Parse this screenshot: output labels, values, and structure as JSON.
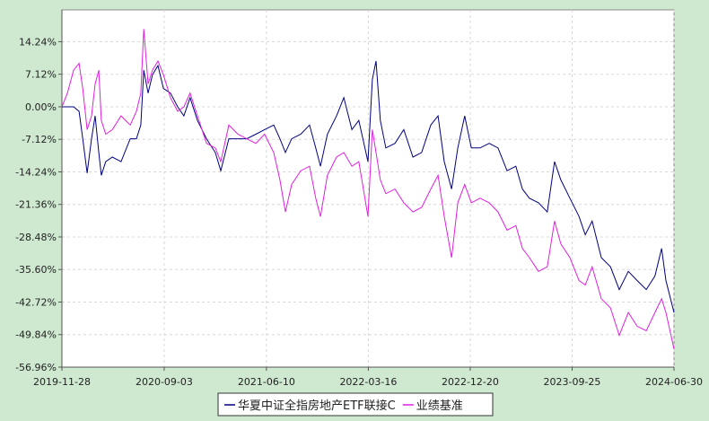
{
  "chart_data": {
    "type": "line",
    "x": [
      "2019-11-28",
      "2019-12-13",
      "2019-12-30",
      "2020-01-14",
      "2020-01-24",
      "2020-02-05",
      "2020-02-17",
      "2020-02-27",
      "2020-03-08",
      "2020-03-15",
      "2020-03-27",
      "2020-04-14",
      "2020-05-08",
      "2020-06-02",
      "2020-06-19",
      "2020-07-01",
      "2020-07-09",
      "2020-07-21",
      "2020-08-02",
      "2020-08-17",
      "2020-09-01",
      "2020-09-20",
      "2020-10-10",
      "2020-10-27",
      "2020-11-13",
      "2020-12-03",
      "2020-12-28",
      "2021-01-21",
      "2021-02-05",
      "2021-02-27",
      "2021-03-24",
      "2021-04-17",
      "2021-05-12",
      "2021-06-05",
      "2021-06-30",
      "2021-07-17",
      "2021-08-01",
      "2021-08-18",
      "2021-09-12",
      "2021-10-06",
      "2021-10-23",
      "2021-11-05",
      "2021-11-24",
      "2021-12-19",
      "2022-01-08",
      "2022-01-30",
      "2022-02-18",
      "2022-03-15",
      "2022-03-27",
      "2022-04-06",
      "2022-04-18",
      "2022-05-03",
      "2022-05-28",
      "2022-06-21",
      "2022-07-16",
      "2022-08-09",
      "2022-09-03",
      "2022-09-23",
      "2022-10-10",
      "2022-10-30",
      "2022-11-16",
      "2022-12-05",
      "2022-12-23",
      "2023-01-16",
      "2023-02-10",
      "2023-03-06",
      "2023-03-31",
      "2023-04-24",
      "2023-05-12",
      "2023-05-31",
      "2023-06-25",
      "2023-07-19",
      "2023-08-08",
      "2023-08-25",
      "2023-09-19",
      "2023-10-14",
      "2023-10-31",
      "2023-11-19",
      "2023-12-14",
      "2024-01-08",
      "2024-02-01",
      "2024-02-26",
      "2024-03-21",
      "2024-04-15",
      "2024-05-09",
      "2024-05-27",
      "2024-06-08",
      "2024-06-30"
    ],
    "series": [
      {
        "name": "华夏中证全指房地产ETF联接C",
        "color": "#000080",
        "values": [
          0,
          0,
          0,
          -1,
          -7,
          -14.5,
          -7,
          -2,
          -10,
          -15,
          -12,
          -11,
          -12,
          -7,
          -7,
          -4,
          8,
          3,
          7,
          9,
          4,
          3,
          0,
          -2,
          2,
          -3,
          -7,
          -10,
          -14,
          -7,
          -7,
          -7,
          -6,
          -5,
          -4,
          -7,
          -10,
          -7,
          -6,
          -4,
          -9,
          -13,
          -6,
          -2,
          2,
          -5,
          -3,
          -12,
          6,
          10,
          -3,
          -9,
          -8,
          -5,
          -11,
          -10,
          -4,
          -2,
          -12,
          -18,
          -9,
          -2,
          -9,
          -9,
          -8,
          -9,
          -14,
          -13,
          -18,
          -20,
          -21,
          -23,
          -12,
          -16,
          -20,
          -24,
          -28,
          -25,
          -33,
          -35,
          -40,
          -36,
          -38,
          -40,
          -37,
          -31,
          -38,
          -45
        ]
      },
      {
        "name": "业绩基准",
        "color": "#e020e0",
        "values": [
          0,
          3,
          8,
          9.5,
          4,
          -5,
          -2,
          5,
          8,
          -3,
          -6,
          -5,
          -2,
          -4,
          -1,
          3,
          17,
          5,
          8,
          10,
          7,
          2,
          -1,
          0,
          3,
          -2,
          -8,
          -9,
          -12,
          -4,
          -6,
          -7,
          -8,
          -6,
          -10,
          -16,
          -23,
          -17,
          -14,
          -13,
          -20,
          -24,
          -15,
          -11,
          -10,
          -13,
          -12,
          -24,
          -5,
          -10,
          -16,
          -19,
          -18,
          -21,
          -23,
          -22,
          -18,
          -15,
          -24,
          -33,
          -21,
          -17,
          -21,
          -20,
          -21,
          -23,
          -27,
          -26,
          -31,
          -33,
          -36,
          -35,
          -25,
          -30,
          -33,
          -38,
          -39,
          -35,
          -42,
          -44,
          -50,
          -45,
          -48,
          -49,
          -45,
          -42,
          -45,
          -53
        ]
      }
    ],
    "xlim": [
      "2019-11-28",
      "2024-06-30"
    ],
    "xticks": [
      "2019-11-28",
      "2020-09-03",
      "2021-06-10",
      "2022-03-16",
      "2022-12-20",
      "2023-09-25",
      "2024-06-30"
    ],
    "ylim": [
      -56.96,
      21.2
    ],
    "yticks": [
      {
        "value": 14.24,
        "label": "14.24%"
      },
      {
        "value": 7.12,
        "label": "7.12%"
      },
      {
        "value": 0,
        "label": "0.00%"
      },
      {
        "value": -7.12,
        "label": "-7.12%"
      },
      {
        "value": -14.24,
        "label": "-14.24%"
      },
      {
        "value": -21.36,
        "label": "-21.36%"
      },
      {
        "value": -28.48,
        "label": "-28.48%"
      },
      {
        "value": -35.6,
        "label": "-35.60%"
      },
      {
        "value": -42.72,
        "label": "-42.72%"
      },
      {
        "value": -49.84,
        "label": "-49.84%"
      },
      {
        "value": -56.96,
        "label": "-56.96%"
      }
    ],
    "grid": true
  }
}
